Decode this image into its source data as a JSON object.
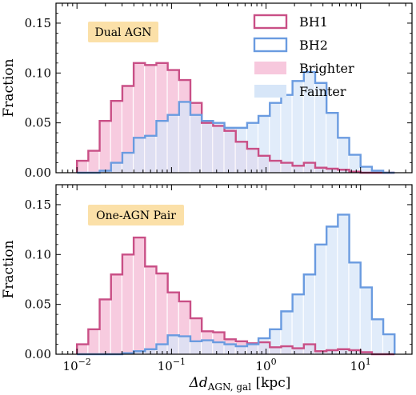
{
  "chart_data": [
    {
      "type": "bar",
      "panel": "top",
      "annotation": "Dual AGN",
      "ylabel": "Fraction",
      "xscale": "log",
      "xlim": [
        0.006,
        35
      ],
      "ylim": [
        0,
        0.17
      ],
      "yticks": [
        "0.00",
        "0.05",
        "0.10",
        "0.15"
      ],
      "ytick_values": [
        0,
        0.05,
        0.1,
        0.15
      ],
      "legend_position": "top-right",
      "legend": [
        {
          "label": "BH1",
          "color": "#c94f86",
          "kind": "step"
        },
        {
          "label": "BH2",
          "color": "#6a9be0",
          "kind": "step"
        },
        {
          "label": "Brighter",
          "color": "#f7c8dd",
          "kind": "fill"
        },
        {
          "label": "Fainter",
          "color": "#d7e6f8",
          "kind": "fill"
        }
      ],
      "log_bin_edges": [
        -2.0,
        -1.88,
        -1.76,
        -1.64,
        -1.52,
        -1.4,
        -1.28,
        -1.16,
        -1.04,
        -0.92,
        -0.8,
        -0.68,
        -0.56,
        -0.44,
        -0.32,
        -0.2,
        -0.08,
        0.04,
        0.16,
        0.28,
        0.4,
        0.52,
        0.64,
        0.76,
        0.88,
        1.0,
        1.12,
        1.24,
        1.36
      ],
      "series": [
        {
          "name": "BH1",
          "color": "#c94f86",
          "fill": "#f7c8dd",
          "values": [
            0.012,
            0.022,
            0.052,
            0.072,
            0.087,
            0.11,
            0.108,
            0.11,
            0.103,
            0.093,
            0.07,
            0.05,
            0.047,
            0.042,
            0.031,
            0.024,
            0.017,
            0.012,
            0.01,
            0.007,
            0.01,
            0.005,
            0.004,
            0.003,
            0.001,
            0.0,
            0.0,
            0.0
          ]
        },
        {
          "name": "BH2",
          "color": "#6a9be0",
          "fill": "#d7e6f8",
          "values": [
            0.0,
            0.0,
            0.002,
            0.01,
            0.02,
            0.035,
            0.037,
            0.052,
            0.058,
            0.071,
            0.058,
            0.052,
            0.05,
            0.045,
            0.045,
            0.05,
            0.057,
            0.07,
            0.078,
            0.092,
            0.101,
            0.09,
            0.06,
            0.035,
            0.018,
            0.006,
            0.002,
            0.0
          ]
        }
      ]
    },
    {
      "type": "bar",
      "panel": "bottom",
      "annotation": "One-AGN Pair",
      "ylabel": "Fraction",
      "xlabel": "Δd_AGN, gal [kpc]",
      "xlabel_main": "Δd",
      "xlabel_sub": "AGN, gal",
      "xlabel_unit": " [kpc]",
      "xscale": "log",
      "xlim": [
        0.006,
        35
      ],
      "ylim": [
        0,
        0.17
      ],
      "yticks": [
        "0.00",
        "0.05",
        "0.10",
        "0.15"
      ],
      "ytick_values": [
        0,
        0.05,
        0.1,
        0.15
      ],
      "xticks": [
        {
          "value": 0.01,
          "base": "10",
          "exp": "−2"
        },
        {
          "value": 0.1,
          "base": "10",
          "exp": "−1"
        },
        {
          "value": 1,
          "base": "10",
          "exp": "0"
        },
        {
          "value": 10,
          "base": "10",
          "exp": "1"
        }
      ],
      "log_bin_edges": [
        -2.0,
        -1.88,
        -1.76,
        -1.64,
        -1.52,
        -1.4,
        -1.28,
        -1.16,
        -1.04,
        -0.92,
        -0.8,
        -0.68,
        -0.56,
        -0.44,
        -0.32,
        -0.2,
        -0.08,
        0.04,
        0.16,
        0.28,
        0.4,
        0.52,
        0.64,
        0.76,
        0.88,
        1.0,
        1.12,
        1.24,
        1.36
      ],
      "series": [
        {
          "name": "BH1",
          "color": "#c94f86",
          "fill": "#f7c8dd",
          "values": [
            0.01,
            0.025,
            0.055,
            0.08,
            0.1,
            0.117,
            0.088,
            0.081,
            0.062,
            0.053,
            0.036,
            0.023,
            0.022,
            0.015,
            0.013,
            0.011,
            0.012,
            0.007,
            0.008,
            0.006,
            0.01,
            0.003,
            0.004,
            0.005,
            0.004,
            0.002,
            0.0,
            0.0
          ]
        },
        {
          "name": "BH2",
          "color": "#6a9be0",
          "fill": "#d7e6f8",
          "values": [
            0.0,
            0.0,
            0.0,
            0.0,
            0.001,
            0.003,
            0.005,
            0.01,
            0.019,
            0.018,
            0.013,
            0.014,
            0.012,
            0.01,
            0.008,
            0.01,
            0.016,
            0.025,
            0.043,
            0.06,
            0.08,
            0.11,
            0.128,
            0.14,
            0.092,
            0.067,
            0.035,
            0.02
          ]
        }
      ]
    }
  ]
}
